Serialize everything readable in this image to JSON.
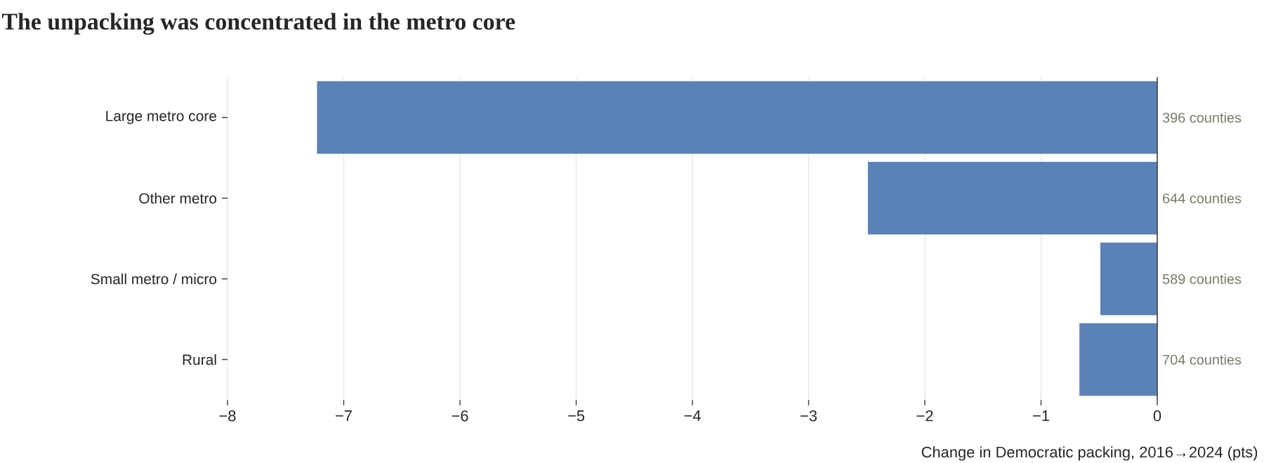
{
  "chart_data": {
    "type": "bar",
    "orientation": "horizontal",
    "title": "The unpacking was concentrated in the metro core",
    "xlabel": "Change in Democratic packing, 2016→2024 (pts)",
    "categories": [
      "Large metro core",
      "Other metro",
      "Small metro / micro",
      "Rural"
    ],
    "values": [
      -7.23,
      -2.49,
      -0.49,
      -0.67
    ],
    "annotations": [
      "396 counties",
      "644 counties",
      "589 counties",
      "704 counties"
    ],
    "color": "#5b82b6",
    "xlim": [
      -8,
      0
    ],
    "xticks": [
      {
        "value": -8,
        "label": "−8"
      },
      {
        "value": -7,
        "label": "−7"
      },
      {
        "value": -6,
        "label": "−6"
      },
      {
        "value": -5,
        "label": "−5"
      },
      {
        "value": -4,
        "label": "−4"
      },
      {
        "value": -3,
        "label": "−3"
      },
      {
        "value": -2,
        "label": "−2"
      },
      {
        "value": -1,
        "label": "−1"
      },
      0
    ],
    "grid": "x"
  }
}
